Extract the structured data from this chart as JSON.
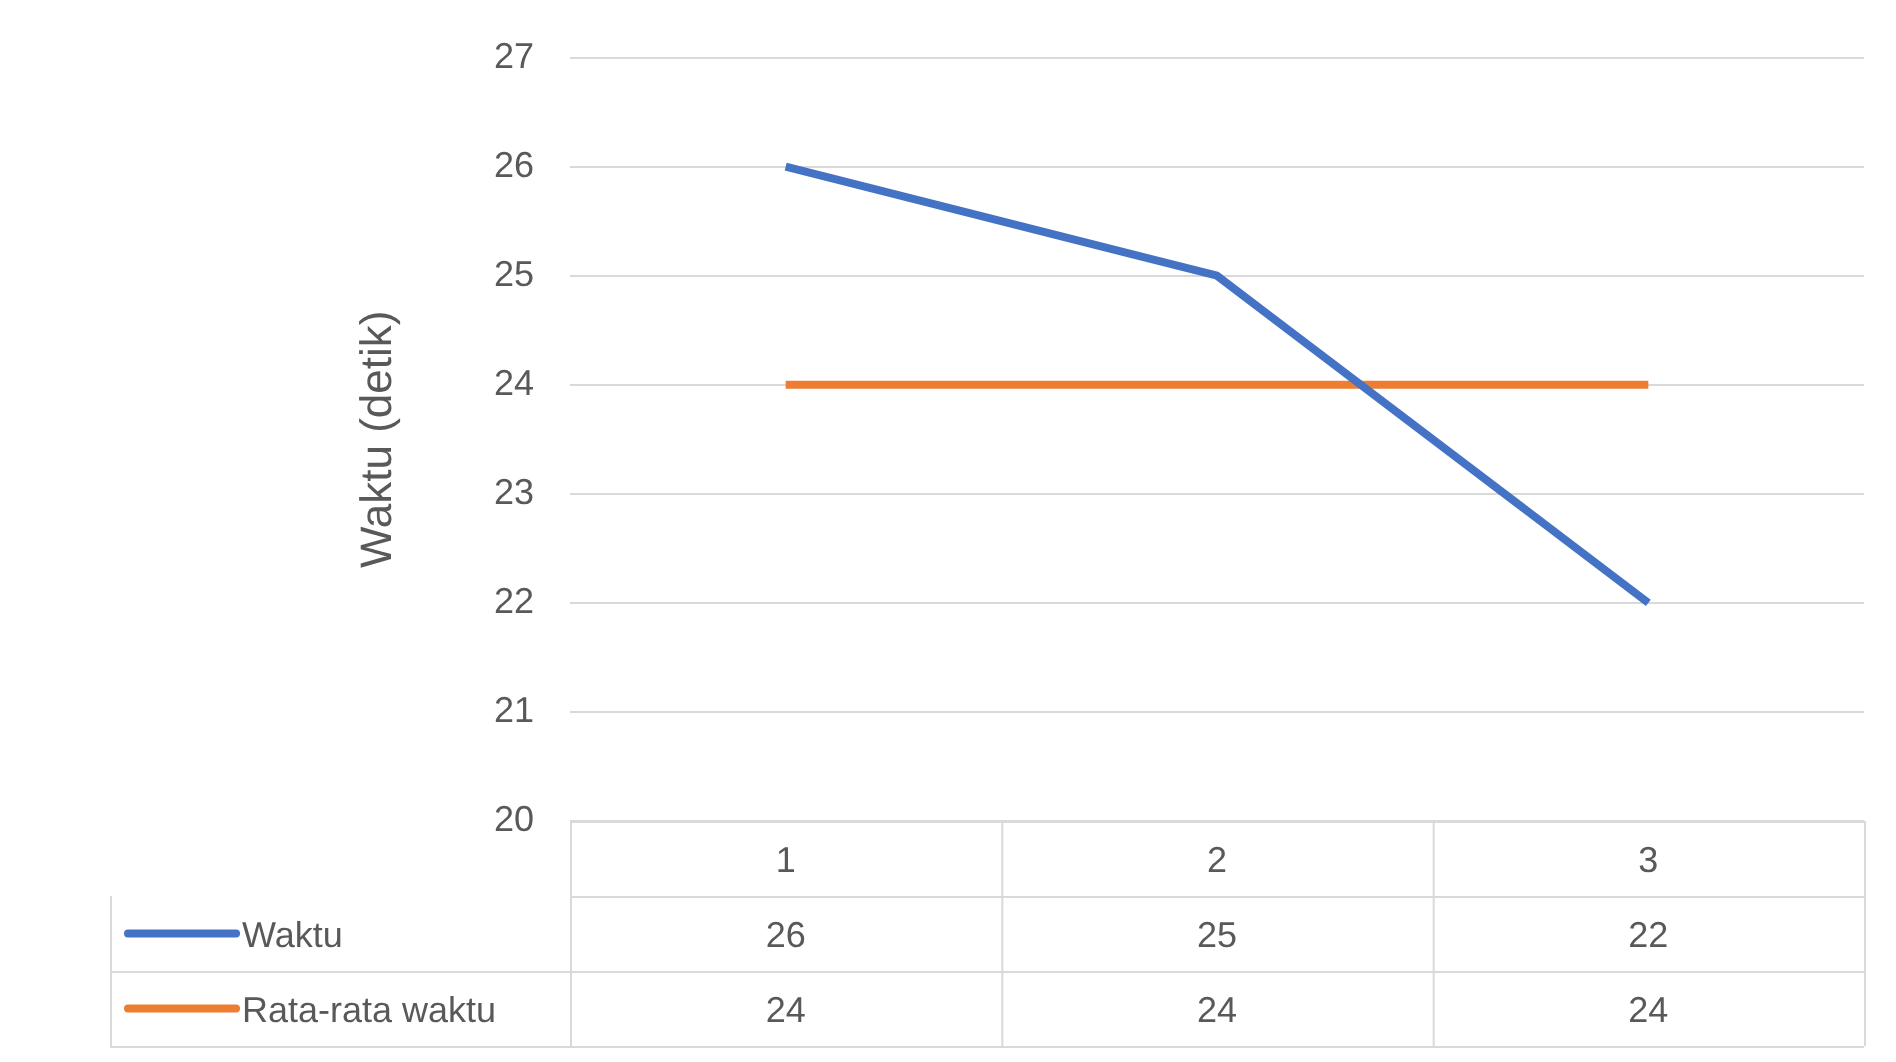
{
  "chart_data": {
    "type": "line",
    "ylabel": "Waktu (detik)",
    "categories": [
      "1",
      "2",
      "3"
    ],
    "series": [
      {
        "name": "Waktu",
        "color": "#4472c4",
        "values": [
          26,
          25,
          22
        ]
      },
      {
        "name": "Rata-rata waktu",
        "color": "#ed7d31",
        "values": [
          24,
          24,
          24
        ]
      }
    ],
    "ylim": [
      20,
      27
    ],
    "yticks": [
      20,
      21,
      22,
      23,
      24,
      25,
      26,
      27
    ],
    "grid": "y",
    "legend": "bottom",
    "data_labels": true,
    "marker": "none"
  }
}
